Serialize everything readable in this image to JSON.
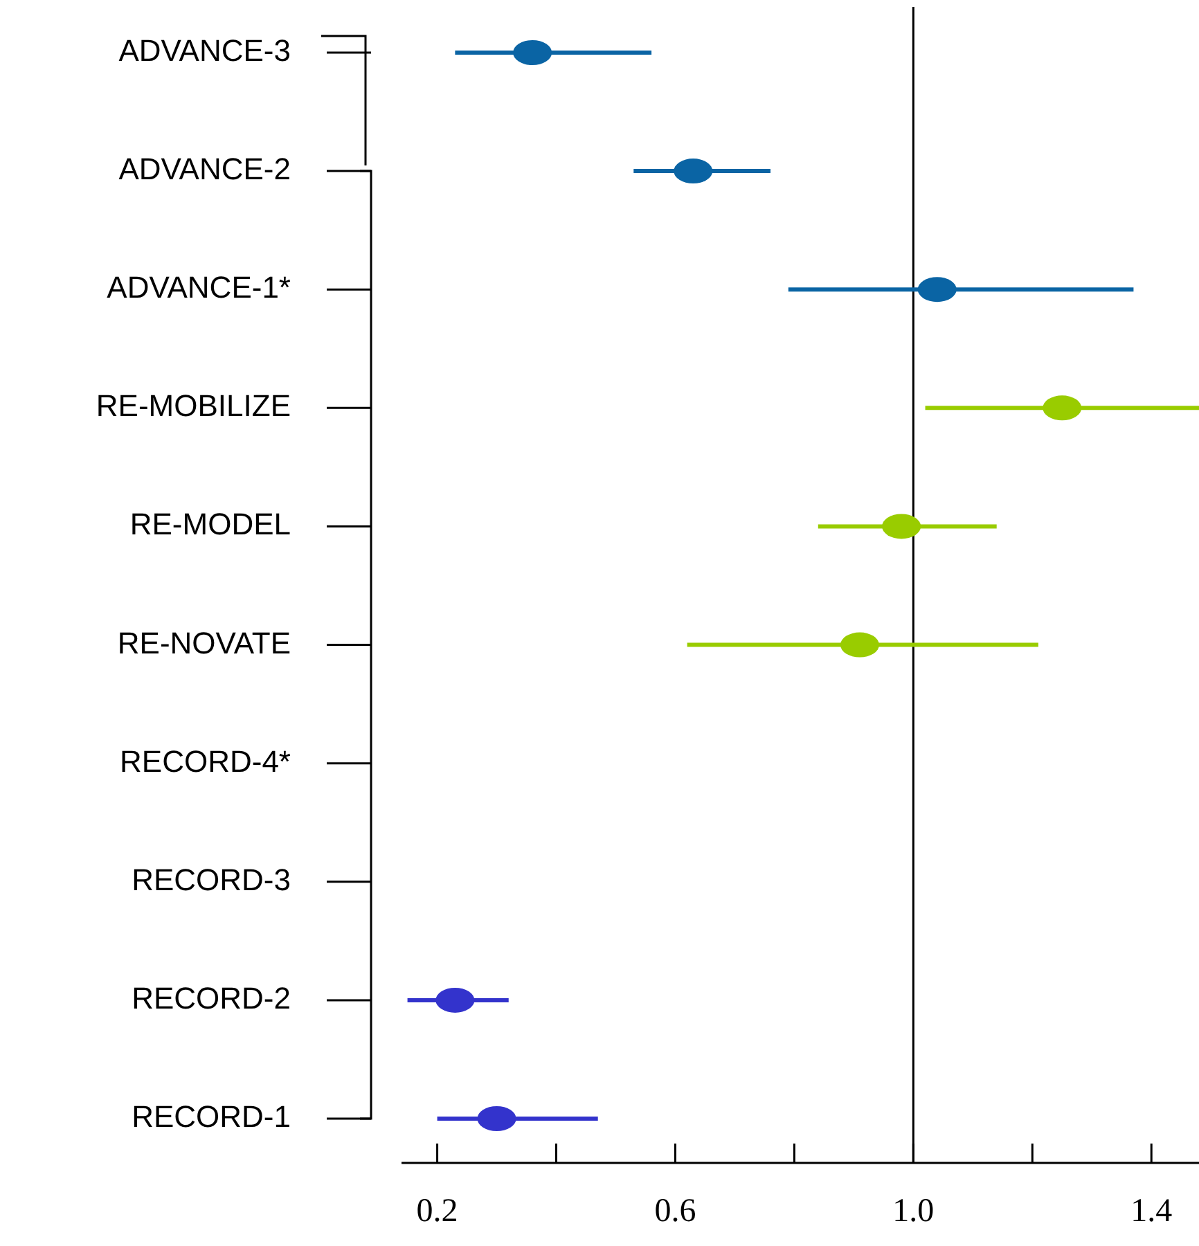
{
  "chart_data": {
    "type": "scatter",
    "orientation": "horizontal",
    "categories": [
      "ADVANCE-3",
      "ADVANCE-2",
      "ADVANCE-1*",
      "RE-MOBILIZE",
      "RE-MODEL",
      "RE-NOVATE",
      "RECORD-4*",
      "RECORD-3",
      "RECORD-2",
      "RECORD-1"
    ],
    "series": [
      {
        "color": "#0a64a4",
        "values": [
          0.36,
          0.63,
          1.04,
          null,
          null,
          null,
          null,
          null,
          null,
          null
        ],
        "errors": [
          [
            0.23,
            0.56
          ],
          [
            0.53,
            0.76
          ],
          [
            0.79,
            1.37
          ],
          null,
          null,
          null,
          null,
          null,
          null,
          null
        ]
      },
      {
        "color": "#99cc00",
        "values": [
          null,
          null,
          null,
          1.25,
          0.98,
          0.91,
          null,
          null,
          null,
          null
        ],
        "errors": [
          null,
          null,
          null,
          [
            1.02,
            1.48
          ],
          [
            0.84,
            1.14
          ],
          [
            0.62,
            1.21
          ],
          null,
          null,
          null,
          null
        ]
      },
      {
        "color": "#3333cc",
        "values": [
          null,
          null,
          null,
          null,
          null,
          null,
          null,
          null,
          0.23,
          0.3
        ],
        "errors": [
          null,
          null,
          null,
          null,
          null,
          null,
          null,
          null,
          [
            0.15,
            0.32
          ],
          [
            0.2,
            0.47
          ]
        ]
      }
    ],
    "xlim": [
      0.14,
      1.48
    ],
    "xticks": [
      0.2,
      {
        "value": 0.4,
        "label": null
      },
      0.6,
      {
        "value": 0.8,
        "label": null
      },
      {
        "value": 1,
        "label": "1.0"
      },
      {
        "value": 1.2,
        "label": null
      },
      1.4
    ],
    "ref_lines": [
      {
        "axis": "x",
        "value": 1,
        "color": "#000000"
      }
    ],
    "marker": "circle"
  }
}
